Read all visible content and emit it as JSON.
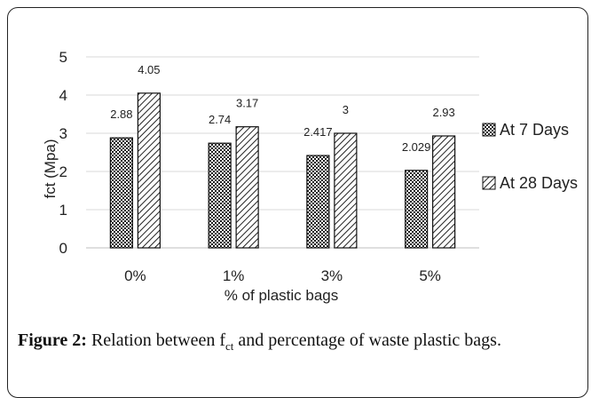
{
  "chart_data": {
    "type": "bar",
    "categories": [
      "0%",
      "1%",
      "3%",
      "5%"
    ],
    "series": [
      {
        "name": "At 7 Days",
        "values": [
          2.88,
          2.74,
          2.417,
          2.029
        ],
        "labels": [
          "2.88",
          "2.74",
          "2.417",
          "2.029"
        ]
      },
      {
        "name": "At 28 Days",
        "values": [
          4.05,
          3.17,
          3.0,
          2.93
        ],
        "labels": [
          "4.05",
          "3.17",
          "3",
          "2.93"
        ]
      }
    ],
    "yticks": [
      "0",
      "1",
      "2",
      "3",
      "4",
      "5"
    ],
    "ylabel": "fct (Mpa)",
    "xlabel": "% of plastic bags",
    "ylim": [
      0,
      5
    ],
    "grid": true,
    "legend_position": "right"
  },
  "caption": {
    "label": "Figure 2:",
    "text_before_sub": " Relation between f",
    "sub": "ct",
    "text_after_sub": " and percentage of waste plastic bags."
  }
}
